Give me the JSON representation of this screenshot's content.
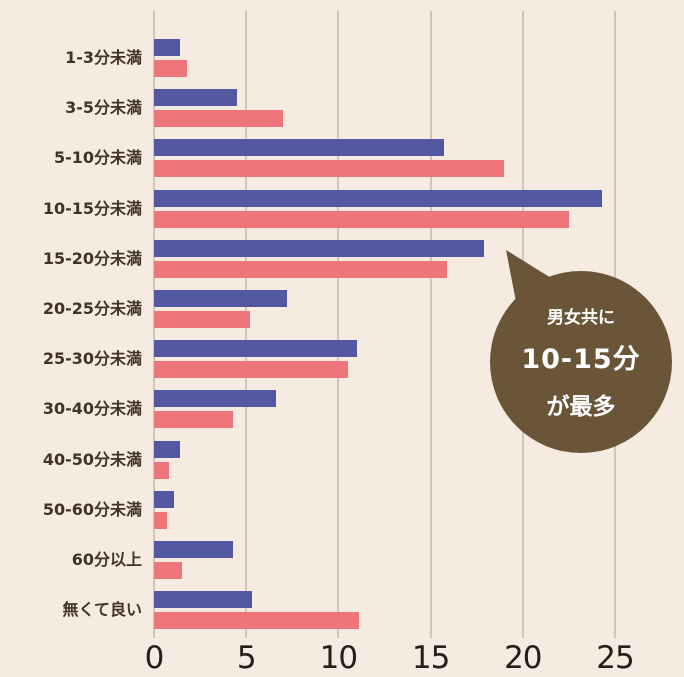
{
  "chart_data": {
    "type": "bar",
    "orientation": "horizontal",
    "title": "",
    "xlabel": "",
    "ylabel": "",
    "categories": [
      "1-3分未満",
      "3-5分未満",
      "5-10分未満",
      "10-15分未満",
      "15-20分未満",
      "20-25分未満",
      "25-30分未満",
      "30-40分未満",
      "40-50分未満",
      "50-60分未満",
      "60分以上",
      "無くて良い"
    ],
    "series": [
      {
        "name": "blue",
        "color": "#5457a2",
        "values": [
          1.4,
          4.5,
          15.7,
          24.3,
          17.9,
          7.2,
          11.0,
          6.6,
          1.4,
          1.1,
          4.3,
          5.3
        ]
      },
      {
        "name": "pink",
        "color": "#ee767b",
        "values": [
          1.8,
          7.0,
          19.0,
          22.5,
          15.9,
          5.2,
          10.5,
          4.3,
          0.8,
          0.7,
          1.5,
          11.1
        ]
      }
    ],
    "x_ticks": [
      0,
      5,
      10,
      15,
      20,
      25
    ],
    "xlim": [
      0,
      27.5
    ],
    "grid": true,
    "grid_color": "#cfc5bb",
    "background": "#f6ebe0",
    "category_text_color": "#40332a",
    "axis_text_color": "#23201c",
    "legend": "none",
    "annotation": {
      "shape": "circle-speech-bubble",
      "color": "#6a5539",
      "text_color": "#ffffff",
      "lines": [
        "男女共に",
        "10-15分",
        "が最多"
      ]
    }
  }
}
